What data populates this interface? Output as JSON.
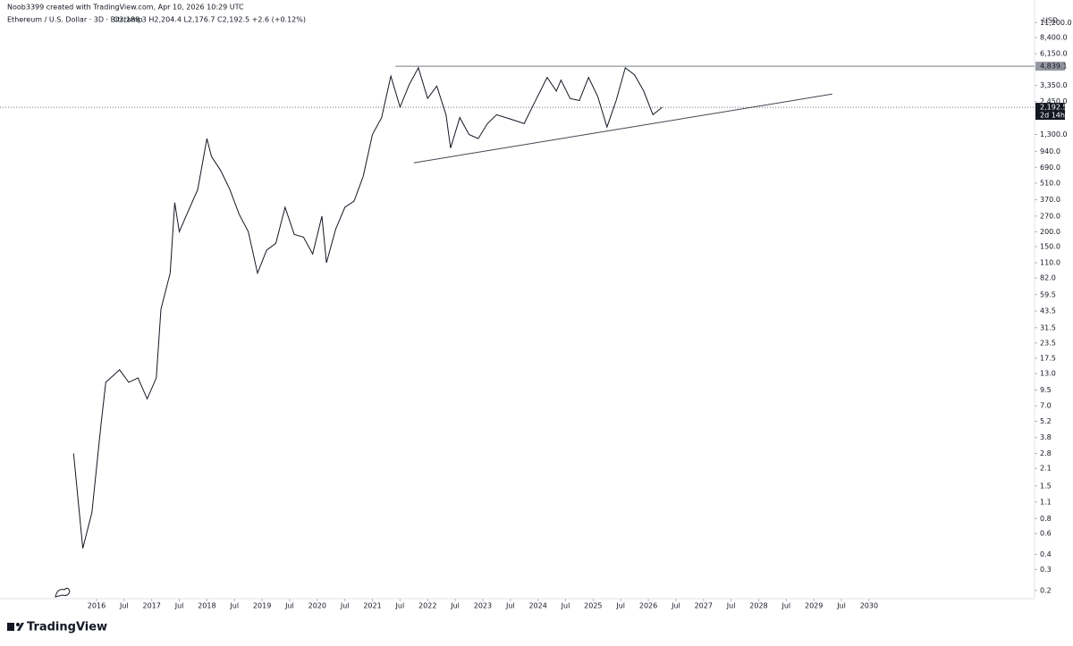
{
  "header": "Noob3399 created with TradingView.com, Apr 10, 2026 10:29 UTC",
  "footer": "TradingView",
  "chart_data": {
    "type": "line",
    "title": "Ethereum / U.S. Dollar · 3D · Bitstamp",
    "ohlc_text": "O2,188.3 H2,204.4 L2,176.7 C2,192.5 +2.6 (+0.12%)",
    "y_unit": "USD",
    "log_scale": true,
    "grid": false,
    "color": "#131722",
    "x": [
      "2015-08",
      "2015-10",
      "2015-12",
      "2016-02",
      "2016-03",
      "2016-06",
      "2016-08",
      "2016-10",
      "2016-12",
      "2017-02",
      "2017-03",
      "2017-05",
      "2017-06",
      "2017-07",
      "2017-09",
      "2017-11",
      "2018-01",
      "2018-02",
      "2018-04",
      "2018-06",
      "2018-08",
      "2018-10",
      "2018-12",
      "2019-02",
      "2019-04",
      "2019-06",
      "2019-08",
      "2019-10",
      "2019-12",
      "2020-02",
      "2020-03",
      "2020-05",
      "2020-07",
      "2020-09",
      "2020-11",
      "2021-01",
      "2021-03",
      "2021-05",
      "2021-07",
      "2021-09",
      "2021-11",
      "2022-01",
      "2022-03",
      "2022-05",
      "2022-06",
      "2022-08",
      "2022-10",
      "2022-12",
      "2023-02",
      "2023-04",
      "2023-06",
      "2023-08",
      "2023-10",
      "2023-12",
      "2024-03",
      "2024-05",
      "2024-06",
      "2024-08",
      "2024-10",
      "2024-12",
      "2025-02",
      "2025-04",
      "2025-06",
      "2025-08",
      "2025-10",
      "2025-12",
      "2026-02",
      "2026-04"
    ],
    "values": [
      2.8,
      0.45,
      0.9,
      5,
      11,
      14,
      11,
      12,
      8,
      12,
      45,
      90,
      350,
      200,
      300,
      450,
      1200,
      850,
      650,
      450,
      280,
      200,
      90,
      140,
      160,
      320,
      190,
      180,
      130,
      270,
      110,
      210,
      320,
      360,
      580,
      1300,
      1800,
      4000,
      2200,
      3400,
      4700,
      2600,
      3300,
      1900,
      1000,
      1800,
      1300,
      1200,
      1600,
      1900,
      1800,
      1700,
      1600,
      2300,
      3900,
      3000,
      3700,
      2600,
      2500,
      3900,
      2700,
      1500,
      2500,
      4700,
      4100,
      3000,
      1900,
      2192.5
    ],
    "xlim": [
      "2014-04",
      "2033-01"
    ],
    "xticks": [
      {
        "value": "2016-01",
        "label": "2016"
      },
      {
        "value": "2016-07",
        "label": "Jul"
      },
      {
        "value": "2017-01",
        "label": "2017"
      },
      {
        "value": "2017-07",
        "label": "Jul"
      },
      {
        "value": "2018-01",
        "label": "2018"
      },
      {
        "value": "2018-07",
        "label": "Jul"
      },
      {
        "value": "2019-01",
        "label": "2019"
      },
      {
        "value": "2019-07",
        "label": "Jul"
      },
      {
        "value": "2020-01",
        "label": "2020"
      },
      {
        "value": "2020-07",
        "label": "Jul"
      },
      {
        "value": "2021-01",
        "label": "2021"
      },
      {
        "value": "2021-07",
        "label": "Jul"
      },
      {
        "value": "2022-01",
        "label": "2022"
      },
      {
        "value": "2022-07",
        "label": "Jul"
      },
      {
        "value": "2023-01",
        "label": "2023"
      },
      {
        "value": "2023-07",
        "label": "Jul"
      },
      {
        "value": "2024-01",
        "label": "2024"
      },
      {
        "value": "2024-07",
        "label": "Jul"
      },
      {
        "value": "2025-01",
        "label": "2025"
      },
      {
        "value": "2025-07",
        "label": "Jul"
      },
      {
        "value": "2026-01",
        "label": "2026"
      },
      {
        "value": "2026-07",
        "label": "Jul"
      },
      {
        "value": "2027-01",
        "label": "2027"
      },
      {
        "value": "2027-07",
        "label": "Jul"
      },
      {
        "value": "2028-01",
        "label": "2028"
      },
      {
        "value": "2028-07",
        "label": "Jul"
      },
      {
        "value": "2029-01",
        "label": "2029"
      },
      {
        "value": "2029-07",
        "label": "Jul"
      },
      {
        "value": "2030-01",
        "label": "2030"
      }
    ],
    "ylim": [
      0.171,
      17300
    ],
    "yticks": [
      {
        "value": 11200,
        "label": "11,200.0"
      },
      {
        "value": 8400,
        "label": "8,400.0"
      },
      {
        "value": 6150,
        "label": "6,150.0"
      },
      {
        "value": 3350,
        "label": "3,350.0"
      },
      {
        "value": 2450,
        "label": "2,450.0"
      },
      {
        "value": 1300,
        "label": "1,300.0"
      },
      {
        "value": 940,
        "label": "940.0"
      },
      {
        "value": 690,
        "label": "690.0"
      },
      {
        "value": 510,
        "label": "510.0"
      },
      {
        "value": 370,
        "label": "370.0"
      },
      {
        "value": 270,
        "label": "270.0"
      },
      {
        "value": 200,
        "label": "200.0"
      },
      {
        "value": 150,
        "label": "150.0"
      },
      {
        "value": 110,
        "label": "110.0"
      },
      {
        "value": 82,
        "label": "82.0"
      },
      59.5,
      43.5,
      31.5,
      23.5,
      17.5,
      {
        "value": 13,
        "label": "13.0"
      },
      9.5,
      {
        "value": 7,
        "label": "7.0"
      },
      5.2,
      3.8,
      2.8,
      2.1,
      1.5,
      1.1,
      0.8,
      0.6,
      0.4,
      0.3,
      0.2
    ],
    "resistance": {
      "x": "2021-06",
      "value": 4839.1,
      "label": "4,839.1"
    },
    "last_price": {
      "value": 2192.5,
      "label": "2,192.5",
      "countdown": "2d 14h"
    },
    "trendline": {
      "x": [
        "2021-10",
        "2029-05"
      ],
      "values": [
        753,
        2830
      ]
    }
  }
}
